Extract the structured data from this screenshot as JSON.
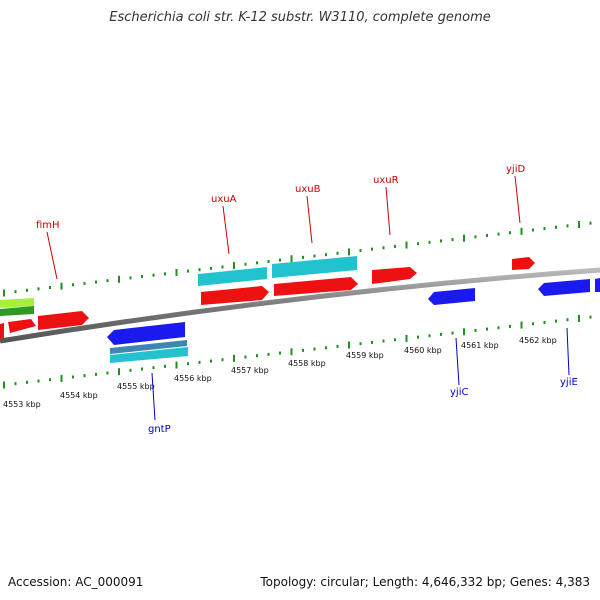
{
  "title": "Escherichia coli str. K-12 substr. W3110, complete genome",
  "footer": {
    "accession": "Accession: AC_000091",
    "summary": "Topology: circular; Length: 4,646,332 bp; Genes: 4,383"
  },
  "colors": {
    "forward_gene": "#ee1111",
    "reverse_gene": "#1a1aee",
    "rna_forward": "#22c3cf",
    "rna_reverse": "#3f86b3",
    "green_feature": "#2f9a20",
    "lime_feature": "#a6f03c",
    "backbone": "#888888",
    "ticks": "#1f8f1f",
    "label_forward": "#cc0000",
    "label_reverse": "#0000cc"
  },
  "scale_labels": [
    "4553 kbp",
    "4554 kbp",
    "4555 kbp",
    "4556 kbp",
    "4557 kbp",
    "4558 kbp",
    "4559 kbp",
    "4560 kbp",
    "4561 kbp",
    "4562 kbp"
  ],
  "gene_labels": {
    "forward": [
      "fimH",
      "uxuA",
      "uxuB",
      "uxuR",
      "yjiD"
    ],
    "reverse": [
      "gntP",
      "yjiC",
      "yjiE"
    ]
  }
}
